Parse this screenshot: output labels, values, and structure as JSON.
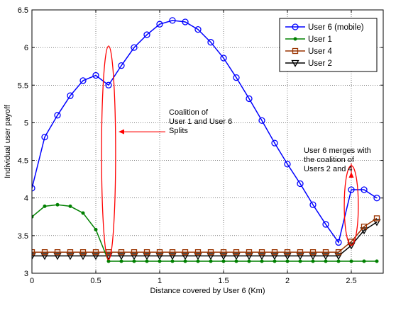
{
  "chart_data": {
    "type": "line",
    "xlabel": "Distance covered by User 6 (Km)",
    "ylabel": "Individual user payoff",
    "xlim": [
      0,
      2.75
    ],
    "ylim": [
      3,
      6.5
    ],
    "x_ticks": [
      "0",
      "0.5",
      "1",
      "1.5",
      "2",
      "2.5"
    ],
    "y_ticks": [
      "3",
      "3.5",
      "4",
      "4.5",
      "5",
      "5.5",
      "6",
      "6.5"
    ],
    "x_tick_values": [
      0,
      0.5,
      1,
      1.5,
      2,
      2.5
    ],
    "y_tick_values": [
      3,
      3.5,
      4,
      4.5,
      5,
      5.5,
      6,
      6.5
    ],
    "grid": true,
    "legend_position": "top-right",
    "series": [
      {
        "name": "User 6 (mobile)",
        "color": "#0000ff",
        "marker": "circle",
        "x": [
          0,
          0.1,
          0.2,
          0.3,
          0.4,
          0.5,
          0.6,
          0.7,
          0.8,
          0.9,
          1.0,
          1.1,
          1.2,
          1.3,
          1.4,
          1.5,
          1.6,
          1.7,
          1.8,
          1.9,
          2.0,
          2.1,
          2.2,
          2.3,
          2.4,
          2.5,
          2.6,
          2.7
        ],
        "y": [
          4.13,
          4.81,
          5.1,
          5.36,
          5.56,
          5.63,
          5.5,
          5.76,
          6.0,
          6.17,
          6.31,
          6.36,
          6.34,
          6.24,
          6.07,
          5.86,
          5.6,
          5.32,
          5.03,
          4.73,
          4.45,
          4.19,
          3.91,
          3.65,
          3.41,
          4.11,
          4.11,
          4.0
        ]
      },
      {
        "name": "User 1",
        "color": "#008000",
        "marker": "dot",
        "x": [
          0,
          0.1,
          0.2,
          0.3,
          0.4,
          0.5,
          0.6,
          0.7,
          0.8,
          0.9,
          1.0,
          1.1,
          1.2,
          1.3,
          1.4,
          1.5,
          1.6,
          1.7,
          1.8,
          1.9,
          2.0,
          2.1,
          2.2,
          2.3,
          2.4,
          2.5,
          2.6,
          2.7
        ],
        "y": [
          3.75,
          3.89,
          3.91,
          3.89,
          3.8,
          3.58,
          3.16,
          3.16,
          3.16,
          3.16,
          3.16,
          3.16,
          3.16,
          3.16,
          3.16,
          3.16,
          3.16,
          3.16,
          3.16,
          3.16,
          3.16,
          3.16,
          3.16,
          3.16,
          3.16,
          3.16,
          3.16,
          3.16
        ]
      },
      {
        "name": "User 4",
        "color": "#993300",
        "marker": "square",
        "x": [
          0,
          0.1,
          0.2,
          0.3,
          0.4,
          0.5,
          0.6,
          0.7,
          0.8,
          0.9,
          1.0,
          1.1,
          1.2,
          1.3,
          1.4,
          1.5,
          1.6,
          1.7,
          1.8,
          1.9,
          2.0,
          2.1,
          2.2,
          2.3,
          2.4,
          2.5,
          2.6,
          2.7
        ],
        "y": [
          3.28,
          3.28,
          3.28,
          3.28,
          3.28,
          3.28,
          3.28,
          3.28,
          3.28,
          3.28,
          3.28,
          3.28,
          3.28,
          3.28,
          3.28,
          3.28,
          3.28,
          3.28,
          3.28,
          3.28,
          3.28,
          3.28,
          3.28,
          3.28,
          3.28,
          3.42,
          3.62,
          3.73
        ]
      },
      {
        "name": "User 2",
        "color": "#000000",
        "marker": "triangle-down",
        "x": [
          0,
          0.1,
          0.2,
          0.3,
          0.4,
          0.5,
          0.6,
          0.7,
          0.8,
          0.9,
          1.0,
          1.1,
          1.2,
          1.3,
          1.4,
          1.5,
          1.6,
          1.7,
          1.8,
          1.9,
          2.0,
          2.1,
          2.2,
          2.3,
          2.4,
          2.5,
          2.6,
          2.7
        ],
        "y": [
          3.23,
          3.23,
          3.23,
          3.23,
          3.23,
          3.23,
          3.23,
          3.23,
          3.23,
          3.23,
          3.23,
          3.23,
          3.23,
          3.23,
          3.23,
          3.23,
          3.23,
          3.23,
          3.23,
          3.23,
          3.23,
          3.23,
          3.23,
          3.23,
          3.23,
          3.37,
          3.57,
          3.68
        ]
      }
    ],
    "annotations": [
      {
        "id": "coalition-split",
        "lines": [
          "Coalition of",
          "User 1 and User 6",
          "Splits"
        ],
        "color": "#ff0000",
        "ellipse_center": [
          0.6,
          4.6
        ],
        "ellipse_rx_data": 0.055,
        "ellipse_ry_data": 1.42
      },
      {
        "id": "user6-merge",
        "lines": [
          "User 6 merges with",
          "the coalition of",
          "Users 2 and 4"
        ],
        "color": "#ff0000",
        "ellipse_center": [
          2.5,
          3.9
        ],
        "ellipse_rx_data": 0.055,
        "ellipse_ry_data": 0.53
      }
    ]
  }
}
